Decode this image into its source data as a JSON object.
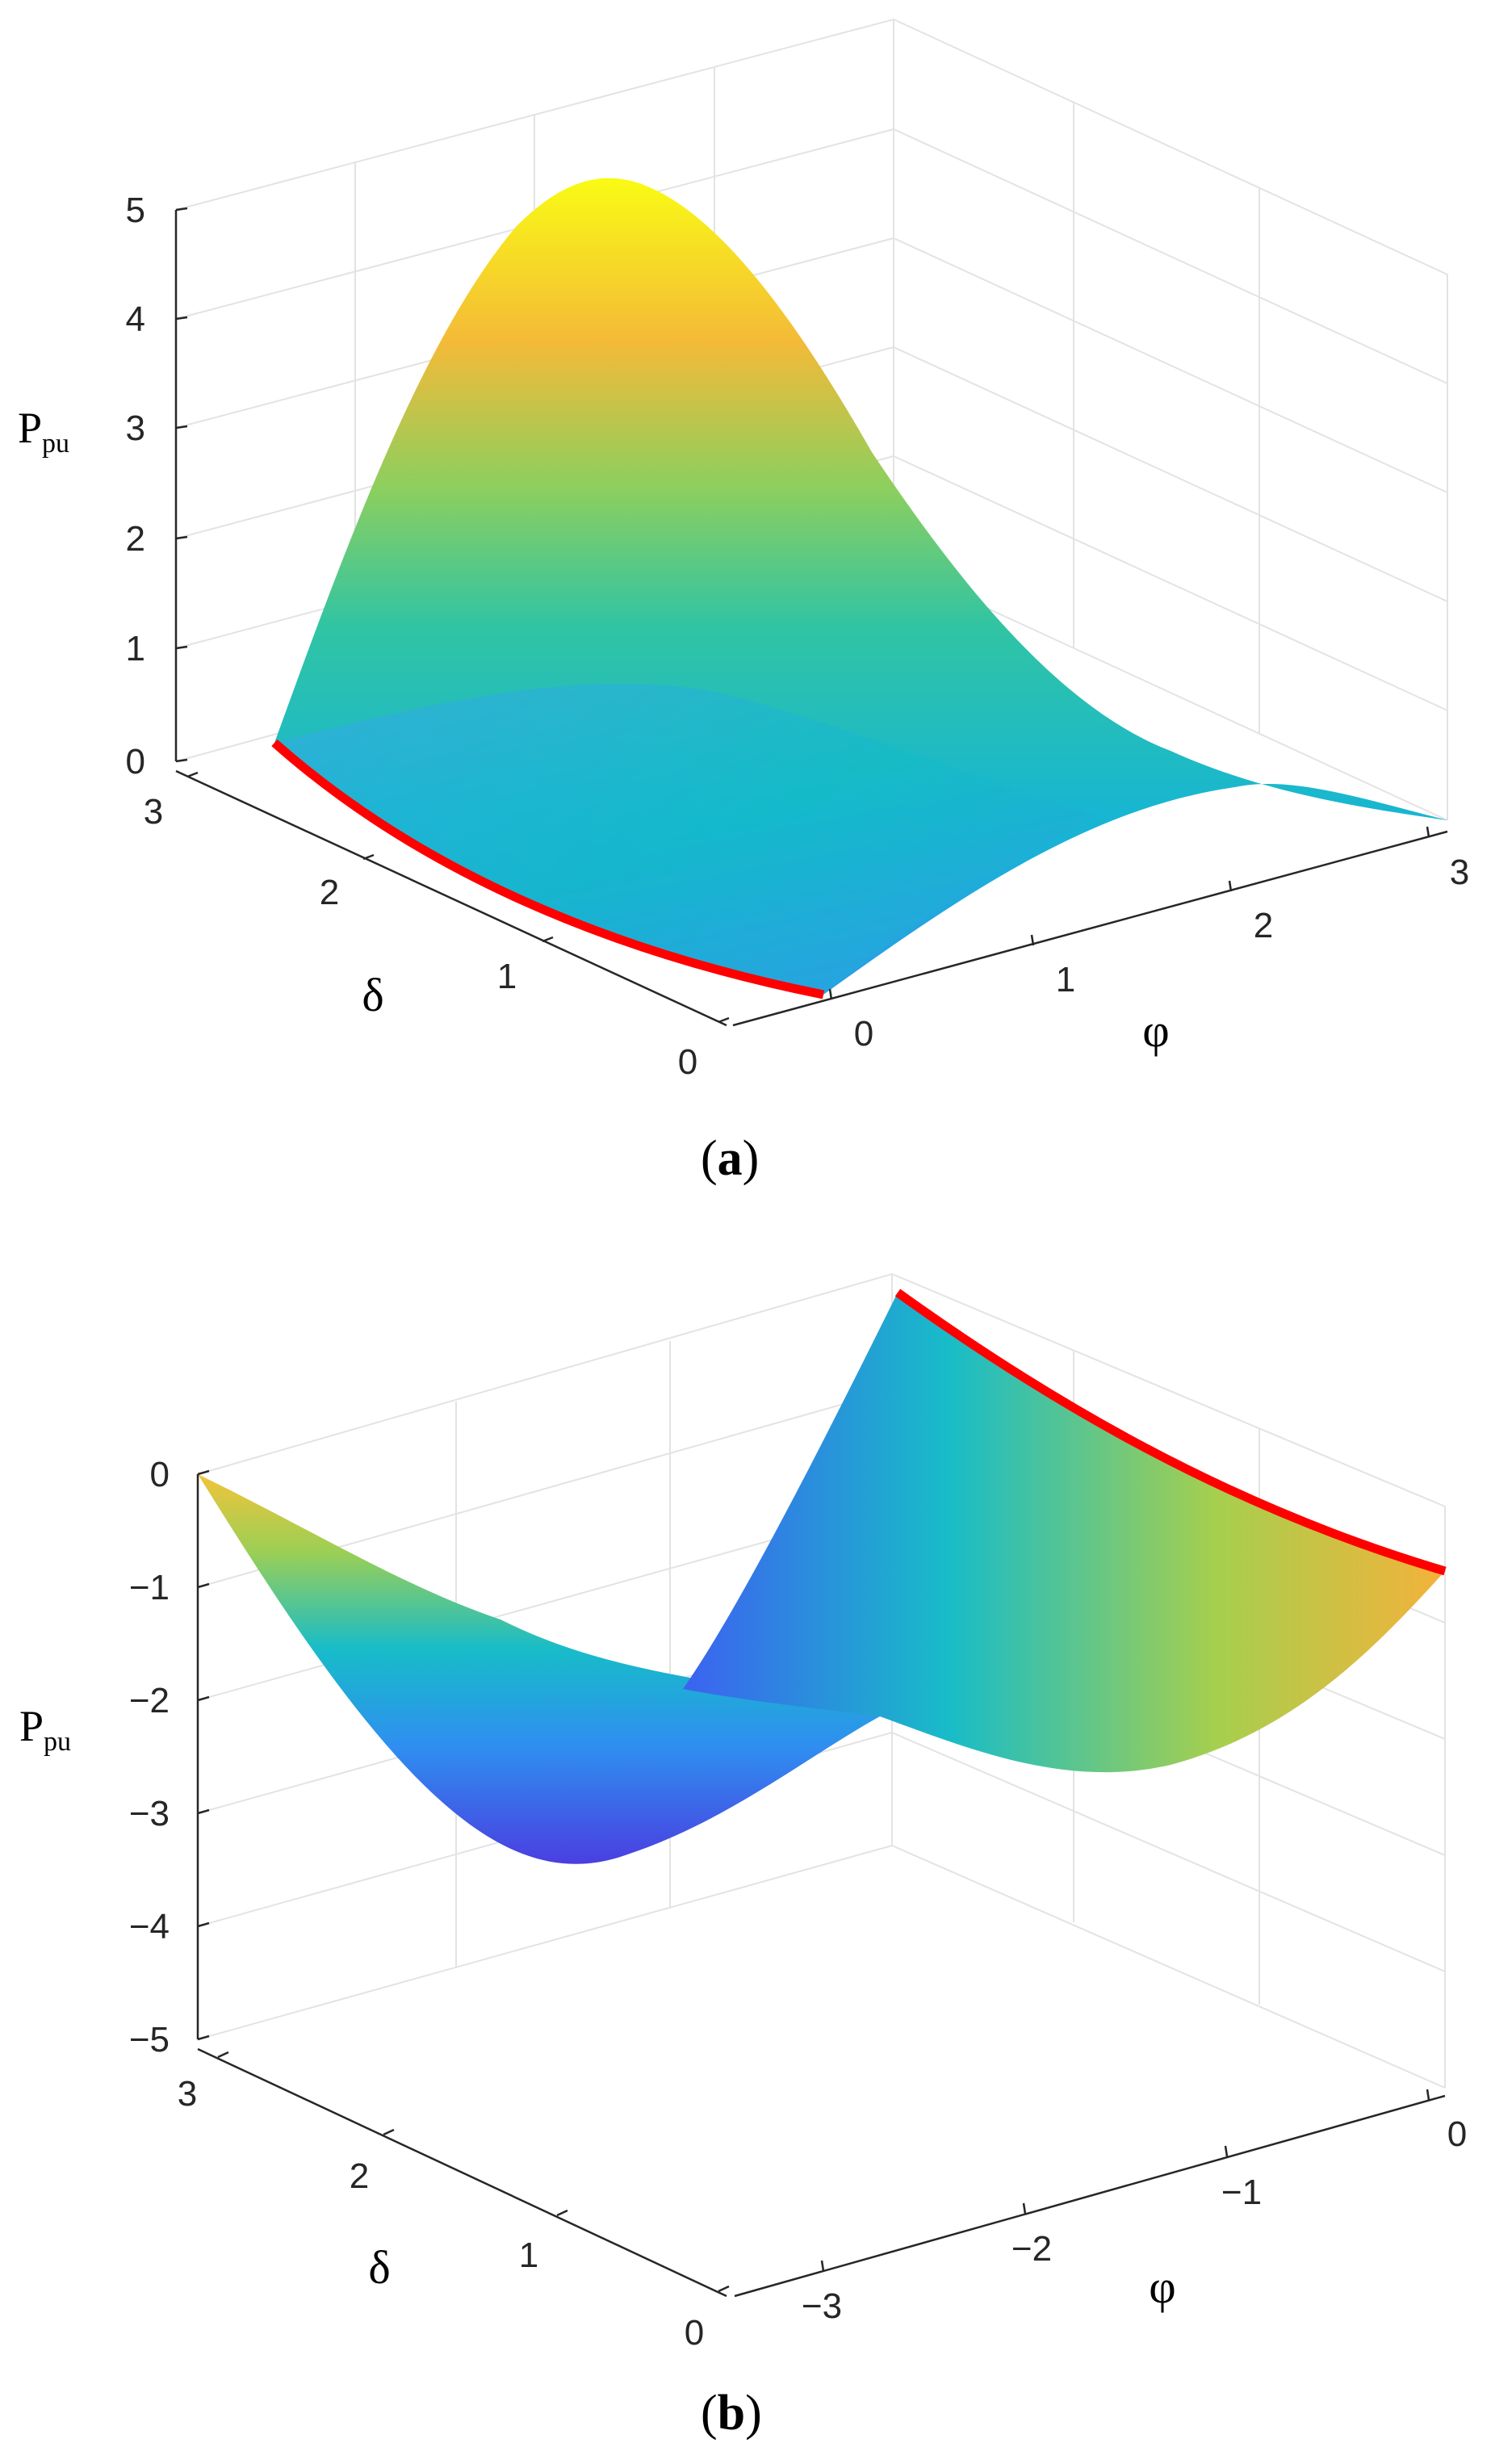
{
  "chart_data": [
    {
      "type": "surface",
      "panel_label": "a",
      "z_label": "P",
      "z_label_sub": "pu",
      "x_label": "φ",
      "y_label": "δ",
      "x_ticks": [
        "0",
        "1",
        "2",
        "3"
      ],
      "y_ticks": [
        "0",
        "1",
        "2",
        "3"
      ],
      "z_ticks": [
        "0",
        "1",
        "2",
        "3",
        "4",
        "5"
      ],
      "xlim": [
        0,
        3.14
      ],
      "ylim": [
        0,
        3.14
      ],
      "zlim": [
        0,
        5
      ],
      "grid": true,
      "highlight_curve_color": "#ff0000",
      "colormap": "parula"
    },
    {
      "type": "surface",
      "panel_label": "b",
      "z_label": "P",
      "z_label_sub": "pu",
      "x_label": "φ",
      "y_label": "δ",
      "x_ticks": [
        "−3",
        "−2",
        "−1",
        "0"
      ],
      "y_ticks": [
        "0",
        "1",
        "2",
        "3"
      ],
      "z_ticks": [
        "−5",
        "−4",
        "−3",
        "−2",
        "−1",
        "0"
      ],
      "xlim": [
        -3.14,
        0
      ],
      "ylim": [
        0,
        3.14
      ],
      "zlim": [
        -5,
        0
      ],
      "grid": true,
      "highlight_curve_color": "#ff0000",
      "colormap": "parula"
    }
  ]
}
